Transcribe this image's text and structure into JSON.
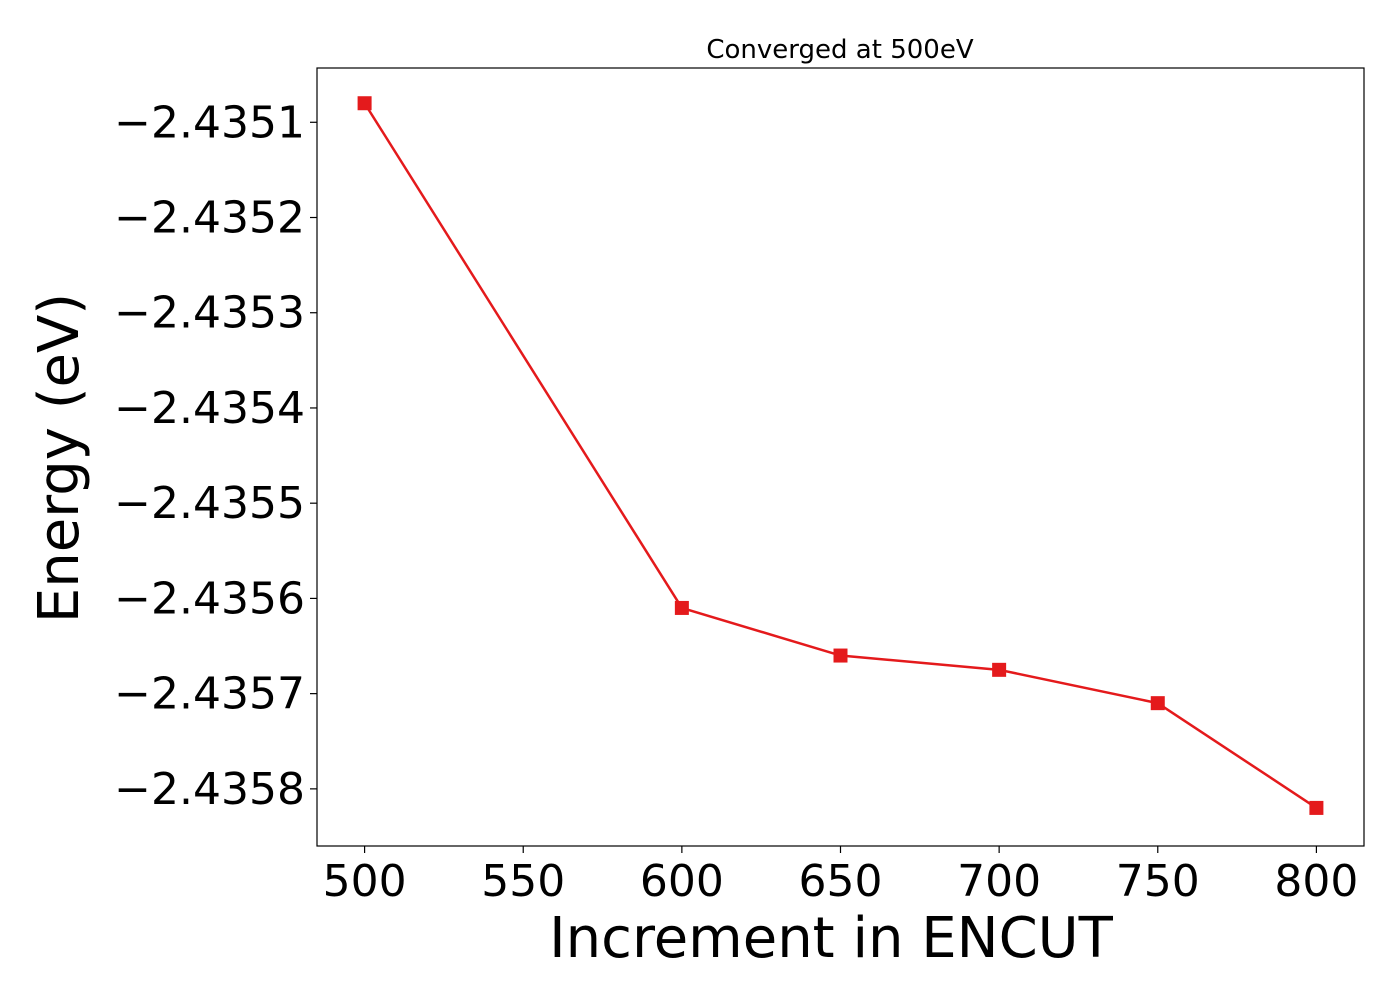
{
  "chart_data": {
    "type": "line",
    "title": "Converged at 500eV",
    "xlabel": "Increment in ENCUT",
    "ylabel": "Energy (eV)",
    "x": [
      500,
      600,
      650,
      700,
      750,
      800
    ],
    "series": [
      {
        "values": [
          -2.43508,
          -2.43561,
          -2.43566,
          -2.435675,
          -2.43571,
          -2.43582
        ],
        "color": "#e41a1c",
        "marker": "square"
      }
    ],
    "xticks": [
      500,
      550,
      600,
      650,
      700,
      750,
      800
    ],
    "xtick_labels": [
      "500",
      "550",
      "600",
      "650",
      "700",
      "750",
      "800"
    ],
    "yticks": [
      -2.4351,
      -2.4352,
      -2.4353,
      -2.4354,
      -2.4355,
      -2.4356,
      -2.4357,
      -2.4358
    ],
    "ytick_labels": [
      "−2.4351",
      "−2.4352",
      "−2.4353",
      "−2.4354",
      "−2.4355",
      "−2.4356",
      "−2.4357",
      "−2.4358"
    ],
    "xlim": [
      485,
      815
    ],
    "ylim": [
      -2.43586,
      -2.435043
    ],
    "grid": false,
    "legend": "none"
  }
}
